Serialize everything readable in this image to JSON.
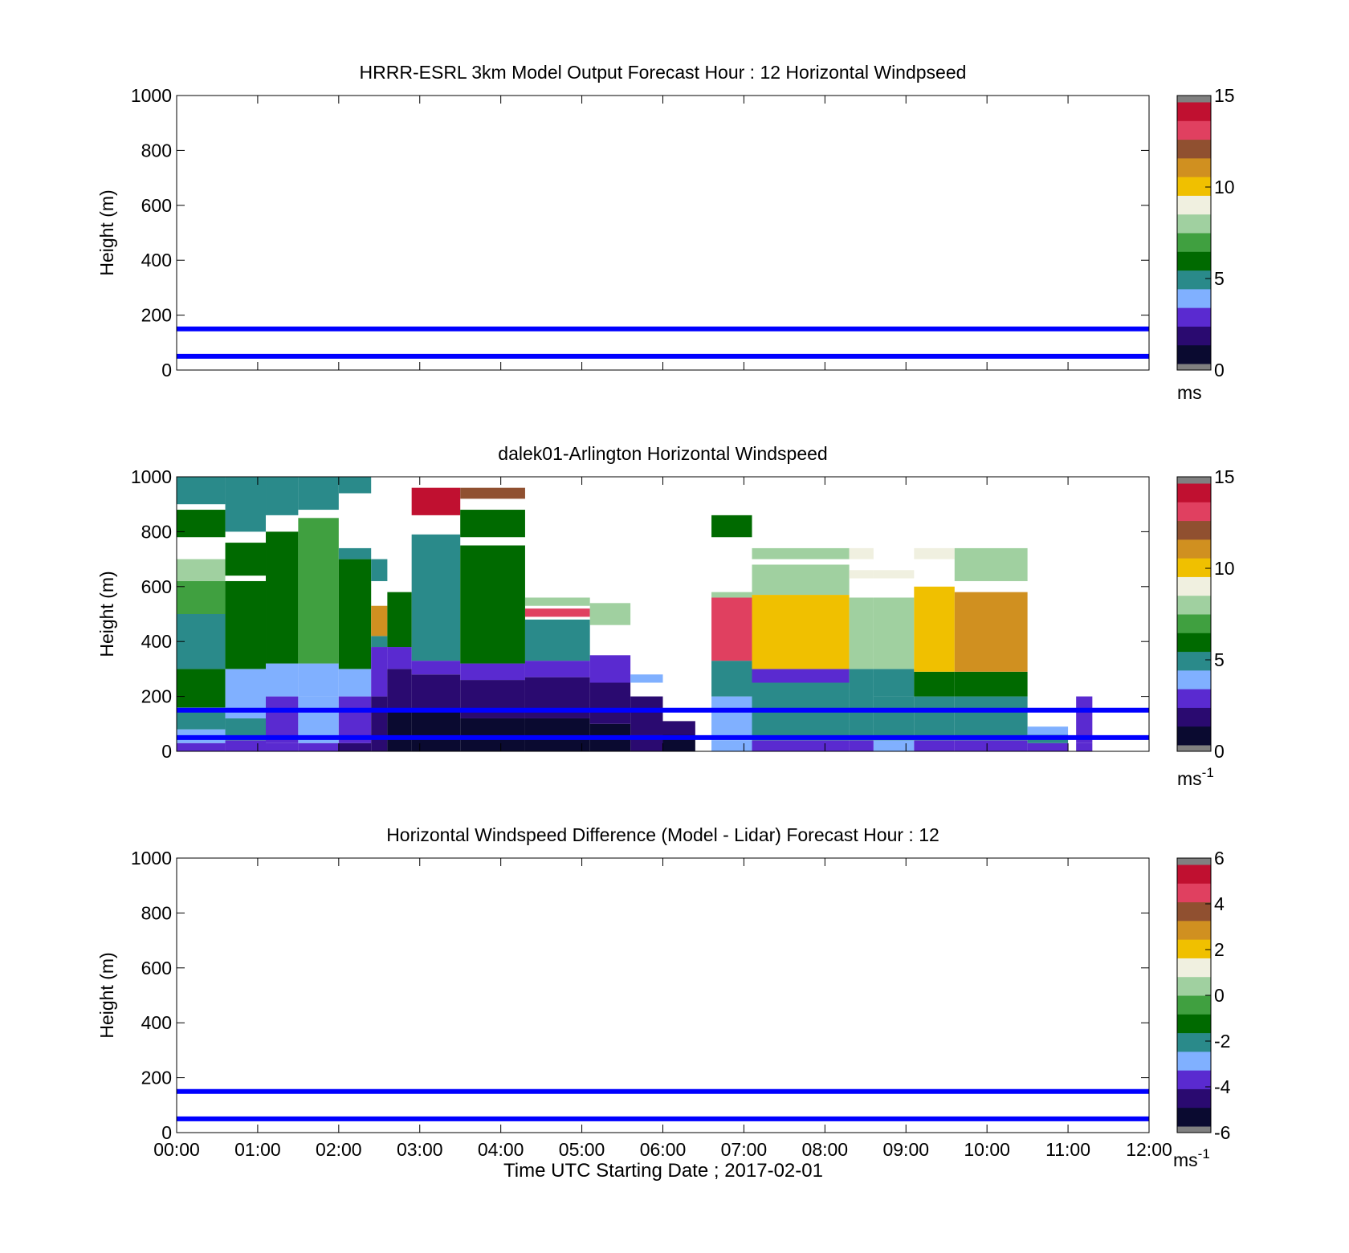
{
  "figure": {
    "xlabel": "Time UTC  Starting Date ; 2017-02-01",
    "x_ticks": [
      "00:00",
      "01:00",
      "02:00",
      "03:00",
      "04:00",
      "05:00",
      "06:00",
      "07:00",
      "08:00",
      "09:00",
      "10:00",
      "11:00",
      "12:00"
    ]
  },
  "chart_data": [
    {
      "type": "heatmap",
      "title": "HRRR-ESRL 3km Model Output   Forecast Hour : 12 Horizontal Windpseed",
      "ylabel": "Height (m)",
      "xlim": [
        "00:00",
        "12:00"
      ],
      "ylim": [
        0,
        1000
      ],
      "y_ticks": [
        "0",
        "200",
        "400",
        "600",
        "800",
        "1000"
      ],
      "reference_lines": [
        {
          "height_m": 150,
          "color": "#0000ff"
        },
        {
          "height_m": 50,
          "color": "#0000ff"
        }
      ],
      "colorbar": {
        "range": [
          0,
          15
        ],
        "ticks": [
          "0",
          "5",
          "10",
          "15"
        ],
        "unit_base": "ms",
        "unit_exp": "",
        "colors": [
          "#808080",
          "#0a0a30",
          "#2a0a70",
          "#5a2ad0",
          "#80b0ff",
          "#2a8a8a",
          "#006a00",
          "#40a040",
          "#a0d0a0",
          "#f0f0e0",
          "#f0c000",
          "#d09020",
          "#905030",
          "#e04060",
          "#c01030",
          "#808080"
        ]
      },
      "cells": []
    },
    {
      "type": "heatmap",
      "title": "dalek01-Arlington  Horizontal Windspeed",
      "ylabel": "Height (m)",
      "xlim": [
        "00:00",
        "12:00"
      ],
      "ylim": [
        0,
        1000
      ],
      "y_ticks": [
        "0",
        "200",
        "400",
        "600",
        "800",
        "1000"
      ],
      "reference_lines": [
        {
          "height_m": 150,
          "color": "#0000ff"
        },
        {
          "height_m": 50,
          "color": "#0000ff"
        }
      ],
      "colorbar": {
        "range": [
          0,
          15
        ],
        "ticks": [
          "0",
          "5",
          "10",
          "15"
        ],
        "unit_base": "ms",
        "unit_exp": "-1",
        "colors": [
          "#808080",
          "#0a0a30",
          "#2a0a70",
          "#5a2ad0",
          "#80b0ff",
          "#2a8a8a",
          "#006a00",
          "#40a040",
          "#a0d0a0",
          "#f0f0e0",
          "#f0c000",
          "#d09020",
          "#905030",
          "#e04060",
          "#c01030",
          "#808080"
        ]
      },
      "cells_note": "columns: [time_start_h, time_end_h, height_bottom_m, height_top_m, windspeed_ms]",
      "cells": [
        [
          0.0,
          0.6,
          0,
          30,
          3
        ],
        [
          0.0,
          0.6,
          30,
          80,
          4.5
        ],
        [
          0.0,
          0.6,
          80,
          160,
          5.5
        ],
        [
          0.0,
          0.6,
          160,
          300,
          6.5
        ],
        [
          0.0,
          0.6,
          300,
          500,
          5.5
        ],
        [
          0.0,
          0.6,
          500,
          620,
          7
        ],
        [
          0.0,
          0.6,
          620,
          700,
          7.5
        ],
        [
          0.0,
          0.6,
          780,
          880,
          6.5
        ],
        [
          0.0,
          0.6,
          900,
          1000,
          5.5
        ],
        [
          0.6,
          1.1,
          0,
          40,
          3.5
        ],
        [
          0.6,
          1.1,
          40,
          120,
          5.5
        ],
        [
          0.6,
          1.1,
          120,
          300,
          4.5
        ],
        [
          0.6,
          1.1,
          300,
          620,
          6
        ],
        [
          0.6,
          1.1,
          640,
          760,
          6
        ],
        [
          0.6,
          1.1,
          800,
          1000,
          5.5
        ],
        [
          1.1,
          1.5,
          0,
          30,
          3.5
        ],
        [
          1.1,
          1.5,
          30,
          200,
          3.7
        ],
        [
          1.1,
          1.5,
          200,
          320,
          4.3
        ],
        [
          1.1,
          1.5,
          320,
          800,
          6.5
        ],
        [
          1.1,
          1.5,
          860,
          1000,
          5.5
        ],
        [
          1.5,
          2.0,
          0,
          30,
          3
        ],
        [
          1.5,
          2.0,
          30,
          200,
          3.8
        ],
        [
          1.5,
          2.0,
          200,
          320,
          4
        ],
        [
          1.5,
          2.0,
          320,
          850,
          7
        ],
        [
          1.5,
          2.0,
          880,
          1000,
          5.5
        ],
        [
          2.0,
          2.4,
          0,
          30,
          2.5
        ],
        [
          2.0,
          2.4,
          30,
          200,
          3.6
        ],
        [
          2.0,
          2.4,
          200,
          300,
          3.8
        ],
        [
          2.0,
          2.4,
          300,
          700,
          6.5
        ],
        [
          2.0,
          2.4,
          700,
          740,
          5.5
        ],
        [
          2.0,
          2.4,
          940,
          1000,
          5.5
        ],
        [
          2.4,
          2.6,
          0,
          200,
          2
        ],
        [
          2.4,
          2.6,
          200,
          380,
          3.4
        ],
        [
          2.4,
          2.6,
          380,
          420,
          5
        ],
        [
          2.4,
          2.6,
          420,
          530,
          11
        ],
        [
          2.4,
          2.6,
          620,
          700,
          5.5
        ],
        [
          2.6,
          2.9,
          0,
          150,
          1.5
        ],
        [
          2.6,
          2.9,
          150,
          300,
          2.5
        ],
        [
          2.6,
          2.9,
          300,
          380,
          3.7
        ],
        [
          2.6,
          2.9,
          380,
          580,
          6
        ],
        [
          2.9,
          3.5,
          0,
          150,
          1.5
        ],
        [
          2.9,
          3.5,
          150,
          280,
          2.2
        ],
        [
          2.9,
          3.5,
          280,
          330,
          3.6
        ],
        [
          2.9,
          3.5,
          330,
          790,
          5.5
        ],
        [
          2.9,
          3.5,
          860,
          960,
          13.5
        ],
        [
          3.5,
          4.3,
          0,
          120,
          1
        ],
        [
          3.5,
          4.3,
          120,
          260,
          2
        ],
        [
          3.5,
          4.3,
          260,
          320,
          3.6
        ],
        [
          3.5,
          4.3,
          320,
          750,
          6
        ],
        [
          3.5,
          4.3,
          780,
          880,
          6
        ],
        [
          3.5,
          4.3,
          920,
          960,
          12
        ],
        [
          4.3,
          5.1,
          0,
          120,
          1
        ],
        [
          4.3,
          5.1,
          120,
          270,
          2
        ],
        [
          4.3,
          5.1,
          270,
          330,
          3.6
        ],
        [
          4.3,
          5.1,
          330,
          480,
          5.5
        ],
        [
          4.3,
          5.1,
          490,
          520,
          12.5
        ],
        [
          4.3,
          5.1,
          530,
          560,
          7.5
        ],
        [
          5.1,
          5.6,
          0,
          100,
          1.2
        ],
        [
          5.1,
          5.6,
          100,
          250,
          2
        ],
        [
          5.1,
          5.6,
          250,
          350,
          3.6
        ],
        [
          5.1,
          5.6,
          460,
          540,
          7.5
        ],
        [
          5.6,
          6.0,
          0,
          60,
          2
        ],
        [
          5.6,
          6.0,
          60,
          200,
          2.5
        ],
        [
          5.6,
          6.0,
          250,
          280,
          4
        ],
        [
          6.0,
          6.4,
          0,
          60,
          1.5
        ],
        [
          6.0,
          6.4,
          60,
          110,
          2.5
        ],
        [
          6.6,
          7.1,
          0,
          40,
          3.8
        ],
        [
          6.6,
          7.1,
          40,
          200,
          4.5
        ],
        [
          6.6,
          7.1,
          200,
          330,
          5.5
        ],
        [
          6.6,
          7.1,
          330,
          560,
          12.5
        ],
        [
          6.6,
          7.1,
          560,
          580,
          8
        ],
        [
          6.6,
          7.1,
          780,
          860,
          6
        ],
        [
          7.1,
          8.3,
          0,
          40,
          3.5
        ],
        [
          7.1,
          8.3,
          40,
          250,
          5
        ],
        [
          7.1,
          8.3,
          250,
          300,
          3.6
        ],
        [
          7.1,
          8.3,
          300,
          570,
          9.5
        ],
        [
          7.1,
          8.3,
          570,
          680,
          8
        ],
        [
          7.1,
          8.3,
          700,
          740,
          8
        ],
        [
          8.3,
          8.6,
          0,
          40,
          3.5
        ],
        [
          8.3,
          8.6,
          40,
          300,
          5
        ],
        [
          8.3,
          8.6,
          300,
          560,
          8
        ],
        [
          8.3,
          8.6,
          630,
          660,
          8.5
        ],
        [
          8.3,
          8.6,
          700,
          740,
          9
        ],
        [
          8.6,
          9.1,
          0,
          40,
          3.8
        ],
        [
          8.6,
          9.1,
          40,
          200,
          5
        ],
        [
          8.6,
          9.1,
          200,
          300,
          5.5
        ],
        [
          8.6,
          9.1,
          300,
          560,
          7.5
        ],
        [
          8.6,
          9.1,
          630,
          660,
          8.5
        ],
        [
          9.1,
          9.6,
          0,
          40,
          3.5
        ],
        [
          9.1,
          9.6,
          40,
          200,
          5.5
        ],
        [
          9.1,
          9.6,
          200,
          290,
          6.5
        ],
        [
          9.1,
          9.6,
          290,
          600,
          10
        ],
        [
          9.1,
          9.6,
          700,
          740,
          9
        ],
        [
          9.6,
          10.5,
          0,
          40,
          3.5
        ],
        [
          9.6,
          10.5,
          40,
          200,
          5.5
        ],
        [
          9.6,
          10.5,
          200,
          290,
          6.5
        ],
        [
          9.6,
          10.5,
          290,
          580,
          10.5
        ],
        [
          9.6,
          10.5,
          620,
          740,
          7.5
        ],
        [
          10.5,
          11.0,
          0,
          30,
          3.5
        ],
        [
          10.5,
          11.0,
          30,
          60,
          5
        ],
        [
          10.5,
          11.0,
          60,
          90,
          4.5
        ],
        [
          11.1,
          11.3,
          0,
          30,
          3
        ],
        [
          11.1,
          11.3,
          30,
          200,
          3.7
        ]
      ]
    },
    {
      "type": "heatmap",
      "title": "Horizontal Windspeed Difference (Model - Lidar) Forecast Hour : 12",
      "ylabel": "Height (m)",
      "xlim": [
        "00:00",
        "12:00"
      ],
      "ylim": [
        0,
        1000
      ],
      "y_ticks": [
        "0",
        "200",
        "400",
        "600",
        "800",
        "1000"
      ],
      "reference_lines": [
        {
          "height_m": 150,
          "color": "#0000ff"
        },
        {
          "height_m": 50,
          "color": "#0000ff"
        }
      ],
      "colorbar": {
        "range": [
          -6,
          6
        ],
        "ticks": [
          "-6",
          "-4",
          "-2",
          "0",
          "2",
          "4",
          "6"
        ],
        "unit_base": "ms",
        "unit_exp": "-1",
        "colors": [
          "#808080",
          "#0a0a30",
          "#2a0a70",
          "#5a2ad0",
          "#80b0ff",
          "#2a8a8a",
          "#006a00",
          "#40a040",
          "#a0d0a0",
          "#f0f0e0",
          "#f0c000",
          "#d09020",
          "#905030",
          "#e04060",
          "#c01030",
          "#808080"
        ]
      },
      "cells": []
    }
  ]
}
